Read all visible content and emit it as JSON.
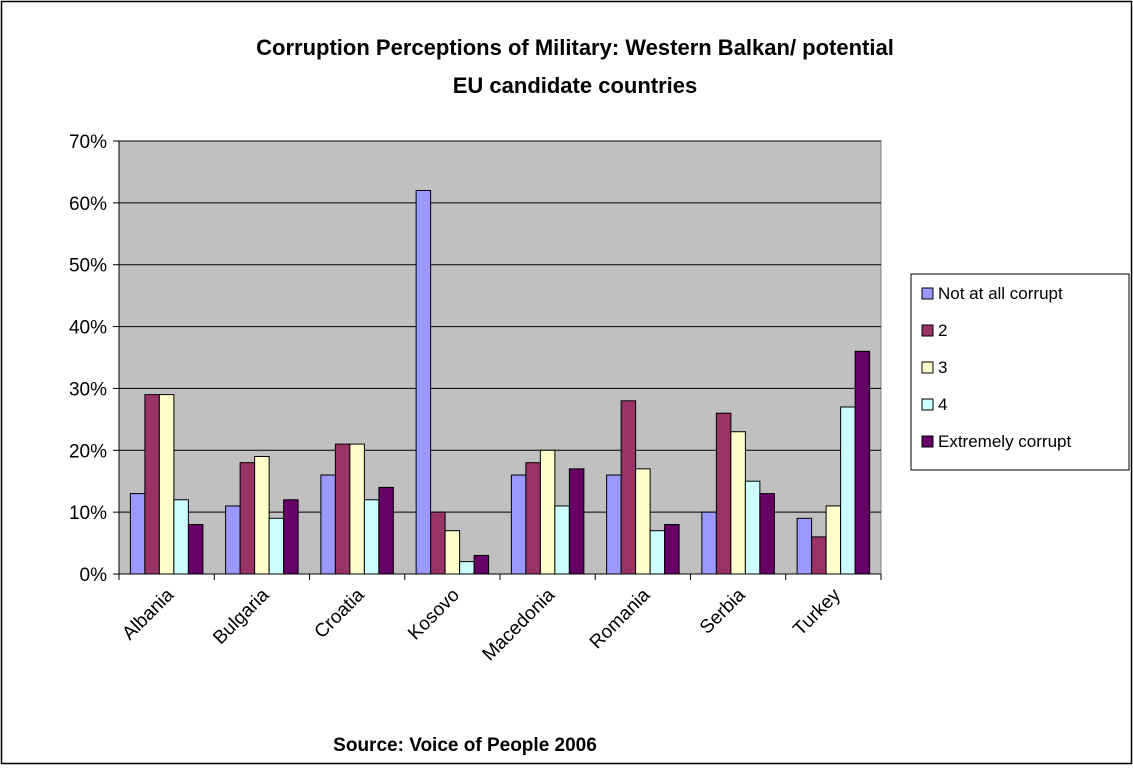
{
  "chart_data": {
    "type": "bar",
    "title_lines": [
      "Corruption Perceptions of Military: Western Balkan/ potential",
      "EU candidate countries"
    ],
    "xlabel": "Source: Voice of People 2006",
    "ylabel": "",
    "ylim": [
      0,
      70
    ],
    "yticks": [
      0,
      10,
      20,
      30,
      40,
      50,
      60,
      70
    ],
    "ytick_labels": [
      "0%",
      "10%",
      "20%",
      "30%",
      "40%",
      "50%",
      "60%",
      "70%"
    ],
    "grid": true,
    "legend_position": "right",
    "categories": [
      "Albania",
      "Bulgaria",
      "Croatia",
      "Kosovo",
      "Macedonia",
      "Romania",
      "Serbia",
      "Turkey"
    ],
    "series": [
      {
        "name": "Not at all corrupt",
        "color": "#9999ff",
        "values": [
          13,
          11,
          16,
          62,
          16,
          16,
          10,
          9
        ]
      },
      {
        "name": "2",
        "color": "#993366",
        "values": [
          29,
          18,
          21,
          10,
          18,
          28,
          26,
          6
        ]
      },
      {
        "name": "3",
        "color": "#ffffcc",
        "values": [
          29,
          19,
          21,
          7,
          20,
          17,
          23,
          11
        ]
      },
      {
        "name": "4",
        "color": "#ccffff",
        "values": [
          12,
          9,
          12,
          2,
          11,
          7,
          15,
          27
        ]
      },
      {
        "name": "Extremely corrupt",
        "color": "#660066",
        "values": [
          8,
          12,
          14,
          3,
          17,
          8,
          13,
          36
        ]
      }
    ],
    "plot_background": "#c0c0c0"
  }
}
